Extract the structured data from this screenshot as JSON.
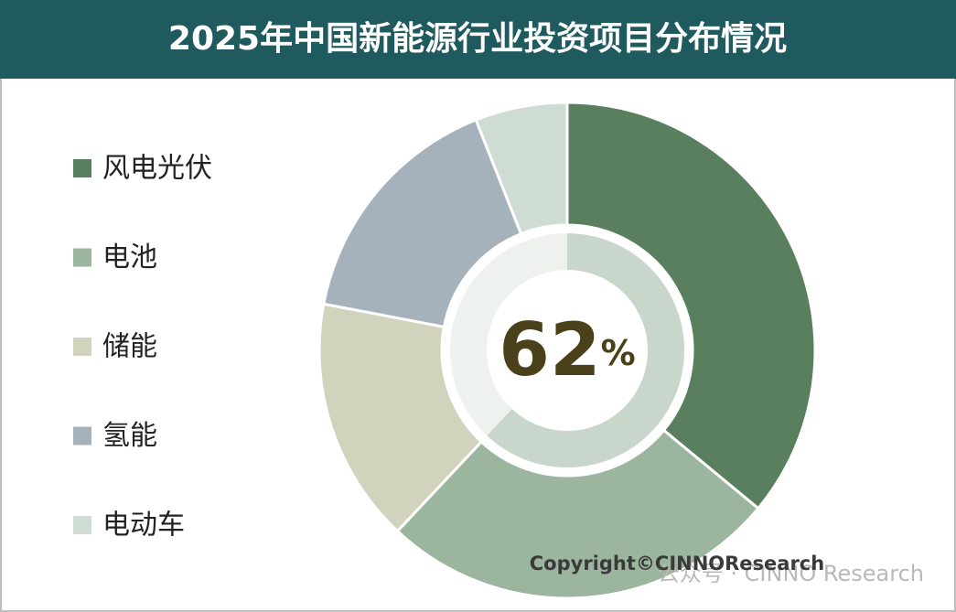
{
  "chart_data": {
    "type": "donut",
    "title": "2025年中国新能源行业投资项目分布情况",
    "categories": [
      "风电光伏",
      "电池",
      "储能",
      "氢能",
      "电动车"
    ],
    "values": [
      36,
      26,
      16,
      16,
      6
    ],
    "colors": [
      "#5a7f5e",
      "#9bb59f",
      "#d1d3bd",
      "#a5b2bc",
      "#cfdcd3"
    ],
    "legend": "left",
    "inner_ring": {
      "value": 62,
      "unit": "%",
      "color": "#c9d6cc"
    }
  },
  "footer": {
    "copyright": "Copyright©CINNOResearch",
    "watermark": "公众号 · CINNO Research"
  }
}
